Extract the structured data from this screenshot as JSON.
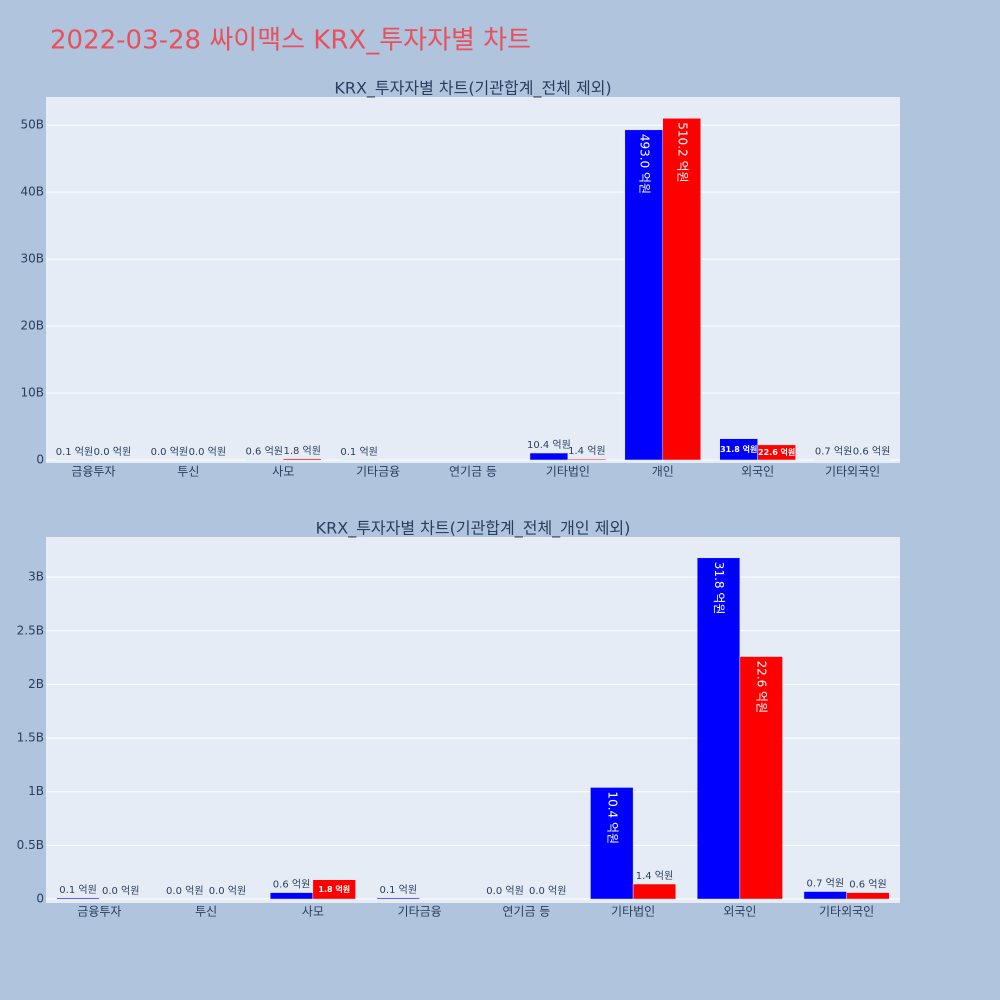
{
  "title": "2022-03-28 싸이맥스 KRX_투자자별 차트",
  "chart_data": [
    {
      "type": "bar",
      "title": "KRX_투자자별 차트(기관합계_전체 제외)",
      "categories": [
        "금융투자",
        "투신",
        "사모",
        "기타금융",
        "연기금 등",
        "기타법인",
        "개인",
        "외국인",
        "기타외국인"
      ],
      "series": [
        {
          "color": "#0000ff",
          "values": [
            10000000,
            0,
            60000000,
            10000000,
            null,
            1040000000,
            49300000000,
            3180000000,
            70000000
          ],
          "value_labels": [
            "0.1 억원",
            "0.0 억원",
            "0.6 억원",
            "0.1 억원",
            null,
            "10.4 억원",
            "493.0 억원",
            "31.8 억원",
            "0.7 억원"
          ]
        },
        {
          "color": "#ff0000",
          "values": [
            0,
            0,
            180000000,
            null,
            null,
            140000000,
            51020000000,
            2260000000,
            60000000
          ],
          "value_labels": [
            "0.0 억원",
            "0.0 억원",
            "1.8 억원",
            null,
            null,
            "1.4 억원",
            "510.2 억원",
            "22.6 억원",
            "0.6 억원"
          ]
        }
      ],
      "ylim": [
        -450000000,
        54200000000
      ],
      "yticks": [
        0,
        {
          "value": 10000000000,
          "label": "10B"
        },
        {
          "value": 20000000000,
          "label": "20B"
        },
        {
          "value": 30000000000,
          "label": "30B"
        },
        {
          "value": 40000000000,
          "label": "40B"
        },
        {
          "value": 50000000000,
          "label": "50B"
        }
      ],
      "grid": true
    },
    {
      "type": "bar",
      "title": "KRX_투자자별 차트(기관합계_전체_개인 제외)",
      "categories": [
        "금융투자",
        "투신",
        "사모",
        "기타금융",
        "연기금 등",
        "기타법인",
        "외국인",
        "기타외국인"
      ],
      "series": [
        {
          "color": "#0000ff",
          "values": [
            10000000,
            0,
            60000000,
            10000000,
            0,
            1040000000,
            3180000000,
            70000000
          ],
          "value_labels": [
            "0.1 억원",
            "0.0 억원",
            "0.6 억원",
            "0.1 억원",
            "0.0 억원",
            "10.4 억원",
            "31.8 억원",
            "0.7 억원"
          ]
        },
        {
          "color": "#ff0000",
          "values": [
            0,
            0,
            180000000,
            null,
            0,
            140000000,
            2260000000,
            60000000
          ],
          "value_labels": [
            "0.0 억원",
            "0.0 억원",
            "1.8 억원",
            null,
            "0.0 억원",
            "1.4 억원",
            "22.6 억원",
            "0.6 억원"
          ]
        }
      ],
      "ylim": [
        -37000000,
        3374000000
      ],
      "yticks": [
        0,
        {
          "value": 500000000,
          "label": "0.5B"
        },
        {
          "value": 1000000000,
          "label": "1B"
        },
        {
          "value": 1500000000,
          "label": "1.5B"
        },
        {
          "value": 2000000000,
          "label": "2B"
        },
        {
          "value": 2500000000,
          "label": "2.5B"
        },
        {
          "value": 3000000000,
          "label": "3B"
        }
      ],
      "grid": true
    }
  ]
}
